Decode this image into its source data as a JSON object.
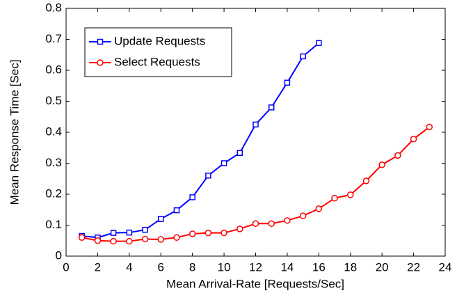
{
  "chart_data": {
    "type": "line",
    "x_label": "Mean Arrival-Rate [Requests/Sec]",
    "y_label": "Mean Response Time [Sec]",
    "xlim": [
      0,
      24
    ],
    "xticks": [
      0,
      2,
      4,
      6,
      8,
      10,
      12,
      14,
      16,
      18,
      20,
      22,
      24
    ],
    "ylim": [
      0,
      0.8
    ],
    "yticks": [
      0,
      0.1,
      0.2,
      0.3,
      0.4,
      0.5,
      0.6,
      0.7,
      0.8
    ],
    "legend": "upper-left",
    "series": [
      {
        "name": "Update Requests",
        "color": "#0000ff",
        "marker": "square",
        "x": [
          1,
          2,
          3,
          4,
          5,
          6,
          7,
          8,
          9,
          10,
          11,
          12,
          13,
          14,
          15,
          16
        ],
        "values": [
          0.065,
          0.06,
          0.075,
          0.076,
          0.085,
          0.12,
          0.148,
          0.19,
          0.26,
          0.3,
          0.333,
          0.425,
          0.48,
          0.56,
          0.645,
          0.688
        ]
      },
      {
        "name": "Select Requests",
        "color": "#ff0000",
        "marker": "circle",
        "x": [
          1,
          2,
          3,
          4,
          5,
          6,
          7,
          8,
          9,
          10,
          11,
          12,
          13,
          14,
          15,
          16,
          17,
          18,
          19,
          20,
          21,
          22,
          23
        ],
        "values": [
          0.06,
          0.05,
          0.048,
          0.048,
          0.055,
          0.054,
          0.06,
          0.072,
          0.075,
          0.075,
          0.088,
          0.105,
          0.105,
          0.115,
          0.13,
          0.153,
          0.187,
          0.198,
          0.243,
          0.295,
          0.325,
          0.378,
          0.417
        ]
      }
    ]
  }
}
